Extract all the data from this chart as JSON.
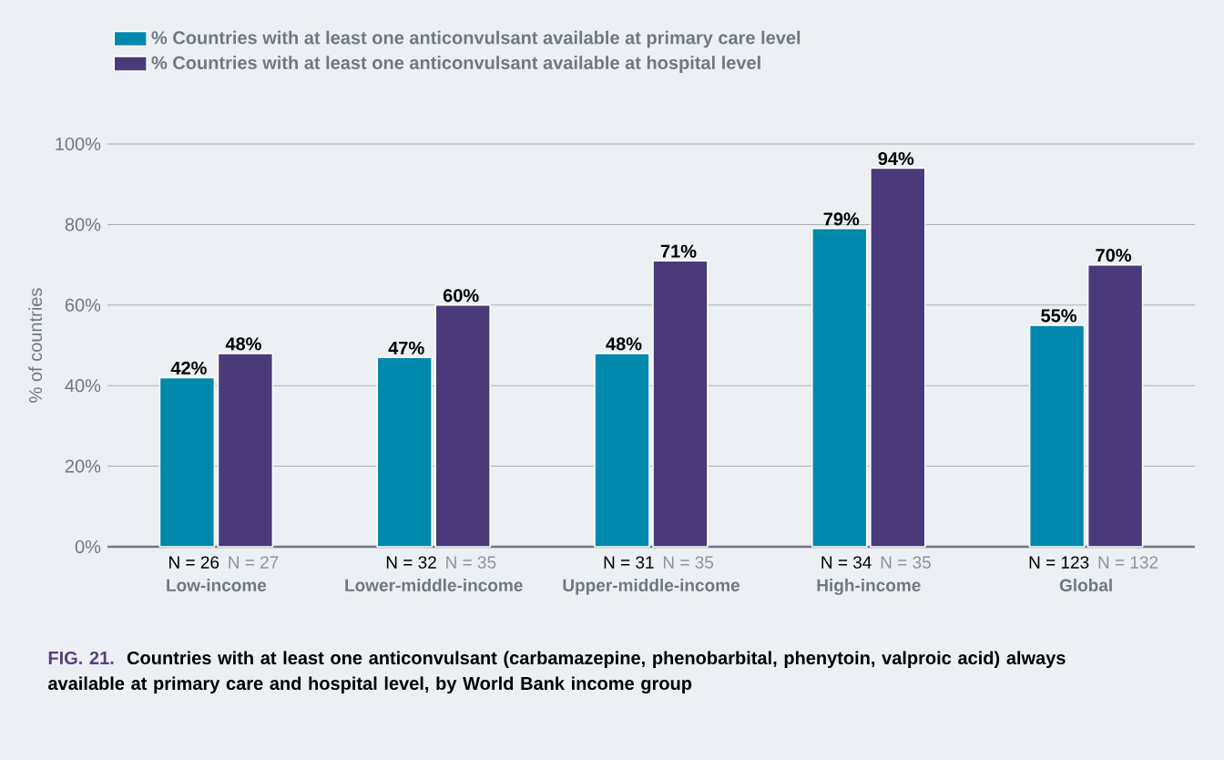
{
  "chart_data": {
    "type": "bar",
    "categories": [
      "Low-income",
      "Lower-middle-income",
      "Upper-middle-income",
      "High-income",
      "Global"
    ],
    "series": [
      {
        "name": "% Countries with at least one anticonvulsant available at primary care level",
        "color": "#0088ad",
        "values": [
          42,
          47,
          48,
          79,
          55
        ]
      },
      {
        "name": "% Countries with at least one anticonvulsant available at hospital level",
        "color": "#4a3a7a",
        "values": [
          48,
          60,
          71,
          94,
          70
        ]
      }
    ],
    "ylabel": "% of countries",
    "ylim": [
      0,
      100
    ],
    "yticks": [
      {
        "value": 0,
        "label": "0%"
      },
      {
        "value": 20,
        "label": "20%"
      },
      {
        "value": 40,
        "label": "40%"
      },
      {
        "value": 60,
        "label": "60%"
      },
      {
        "value": 80,
        "label": "80%"
      },
      {
        "value": 100,
        "label": "100%"
      }
    ],
    "value_labels": [
      [
        "42%",
        "47%",
        "48%",
        "79%",
        "55%"
      ],
      [
        "48%",
        "60%",
        "71%",
        "94%",
        "70%"
      ]
    ],
    "grid": "y",
    "legend": "top left",
    "annotations": [
      "N = 26",
      "N = 27",
      "N = 32",
      "N = 35",
      "N = 31",
      "N = 35",
      "N = 34",
      "N = 35",
      "N = 123",
      "N = 132",
      "FIG. 21.",
      "Countries with at least one anticonvulsant (carbamazepine, phenobarbital, phenytoin, valproic acid) always available at primary care and hospital level, by World Bank income group"
    ]
  }
}
